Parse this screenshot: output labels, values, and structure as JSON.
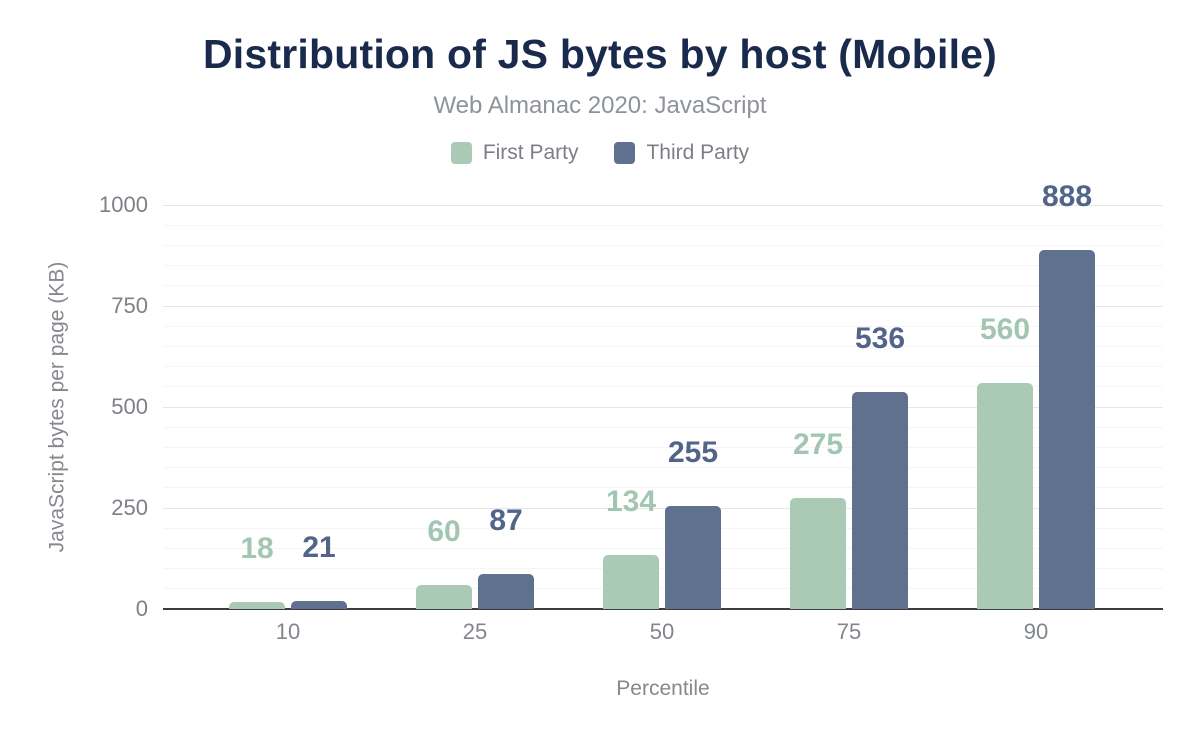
{
  "header": {
    "title": "Distribution of JS bytes by host (Mobile)",
    "subtitle": "Web Almanac 2020: JavaScript"
  },
  "legend": [
    {
      "label": "First Party",
      "color": "#aacab6"
    },
    {
      "label": "Third Party",
      "color": "#5f718e"
    }
  ],
  "colors": {
    "title": "#1a2a4d",
    "subtitle": "#8e9299",
    "axis_text": "#7d8187",
    "axis_line": "#3d3d3d",
    "first_party_bar": "#aacab6",
    "first_party_label": "#a2c6b1",
    "third_party_bar": "#5f718e",
    "third_party_label": "#52648a"
  },
  "chart_data": {
    "type": "bar",
    "title": "Distribution of JS bytes by host (Mobile)",
    "subtitle": "Web Almanac 2020: JavaScript",
    "categories": [
      "10",
      "25",
      "50",
      "75",
      "90"
    ],
    "series": [
      {
        "name": "First Party",
        "color": "#aacab6",
        "label_color": "#a2c6b1",
        "values": [
          18,
          60,
          134,
          275,
          560
        ]
      },
      {
        "name": "Third Party",
        "color": "#5f718e",
        "label_color": "#52648a",
        "values": [
          21,
          87,
          255,
          536,
          888
        ]
      }
    ],
    "xlabel": "Percentile",
    "ylabel": "JavaScript bytes per page (KB)",
    "ylim": [
      0,
      1000
    ],
    "yticks": [
      0,
      250,
      500,
      750,
      1000
    ],
    "minor_grid_step": 50,
    "grid": true,
    "legend_position": "top",
    "value_labels": true
  }
}
